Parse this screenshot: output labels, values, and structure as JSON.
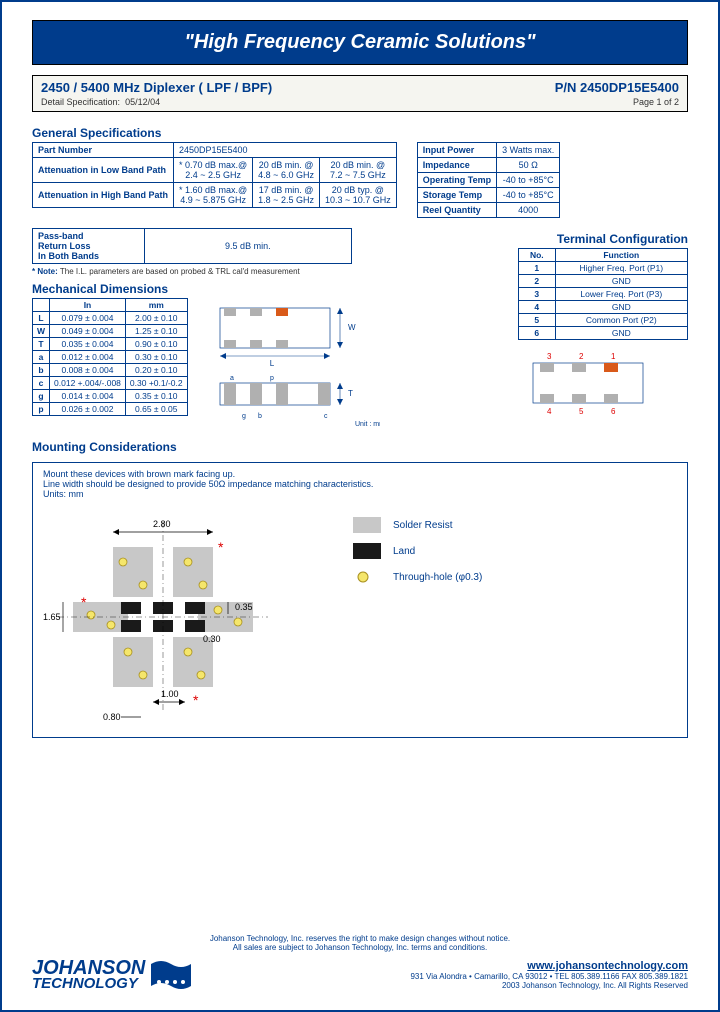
{
  "banner": "\"High Frequency Ceramic Solutions\"",
  "titlebar": {
    "main": "2450 / 5400 MHz Diplexer ( LPF / BPF)",
    "pn": "P/N 2450DP15E5400",
    "detail_label": "Detail Specification:",
    "date": "05/12/04",
    "page": "Page 1 of 2"
  },
  "sections": {
    "general": "General Specifications",
    "mech": "Mechanical Dimensions",
    "term": "Terminal Configuration",
    "mount": "Mounting Considerations"
  },
  "genspec": {
    "pn_label": "Part Number",
    "pn_val": "2450DP15E5400",
    "att_low_label": "Attenuation in Low Band Path",
    "att_low_1a": "* 0.70 dB max.@",
    "att_low_1b": "2.4 ~ 2.5 GHz",
    "att_low_2a": "20 dB min. @",
    "att_low_2b": "4.8 ~ 6.0 GHz",
    "att_low_3a": "20 dB min. @",
    "att_low_3b": "7.2 ~ 7.5 GHz",
    "att_high_label": "Attenuation in High Band Path",
    "att_high_1a": "* 1.60 dB max.@",
    "att_high_1b": "4.9 ~ 5.875 GHz",
    "att_high_2a": "17 dB min. @",
    "att_high_2b": "1.8 ~ 2.5 GHz",
    "att_high_3a": "20 dB typ. @",
    "att_high_3b": "10.3 ~ 10.7 GHz"
  },
  "envspec": {
    "power_l": "Input Power",
    "power_v": "3 Watts max.",
    "imp_l": "Impedance",
    "imp_v": "50 Ω",
    "opt_l": "Operating Temp",
    "opt_v": "-40 to +85°C",
    "stg_l": "Storage Temp",
    "stg_v": "-40 to +85°C",
    "reel_l": "Reel Quantity",
    "reel_v": "4000"
  },
  "passband": {
    "label1": "Pass-band",
    "label2": "Return Loss",
    "label3": "In Both Bands",
    "val": "9.5 dB min."
  },
  "note": "* Note: The I.L. parameters are based on probed & TRL cal'd measurement",
  "dims": {
    "h_in": "In",
    "h_mm": "mm",
    "rows": [
      {
        "k": "L",
        "in": "0.079 ± 0.004",
        "mm": "2.00 ± 0.10"
      },
      {
        "k": "W",
        "in": "0.049 ± 0.004",
        "mm": "1.25 ± 0.10"
      },
      {
        "k": "T",
        "in": "0.035 ± 0.004",
        "mm": "0.90 ± 0.10"
      },
      {
        "k": "a",
        "in": "0.012 ± 0.004",
        "mm": "0.30 ± 0.10"
      },
      {
        "k": "b",
        "in": "0.008 ± 0.004",
        "mm": "0.20 ± 0.10"
      },
      {
        "k": "c",
        "in": "0.012 +.004/-.008",
        "mm": "0.30 +0.1/-0.2"
      },
      {
        "k": "g",
        "in": "0.014 ± 0.004",
        "mm": "0.35 ± 0.10"
      },
      {
        "k": "p",
        "in": "0.026 ± 0.002",
        "mm": "0.65 ± 0.05"
      }
    ],
    "unit": "Unit : mm"
  },
  "terminals": {
    "h1": "No.",
    "h2": "Function",
    "rows": [
      {
        "n": "1",
        "f": "Higher Freq. Port (P1)"
      },
      {
        "n": "2",
        "f": "GND"
      },
      {
        "n": "3",
        "f": "Lower Freq. Port (P3)"
      },
      {
        "n": "4",
        "f": "GND"
      },
      {
        "n": "5",
        "f": "Common Port (P2)"
      },
      {
        "n": "6",
        "f": "GND"
      }
    ]
  },
  "mount": {
    "line1": "Mount these devices with brown mark facing up.",
    "line2": "Line width should be designed to provide 50Ω impedance matching characteristics.",
    "units": "Units: mm",
    "d1": "2.80",
    "d2": "1.65",
    "d3": "0.35",
    "d4": "0.30",
    "d5": "1.00",
    "d6": "0.80",
    "legend1": "Solder Resist",
    "legend2": "Land",
    "legend3": "Through-hole (φ0.3)"
  },
  "footer": {
    "l1": "Johanson Technology, Inc. reserves the right to make design changes without notice.",
    "l2": "All sales are subject to Johanson Technology, Inc. terms and conditions.",
    "url": "www.johansontechnology.com",
    "addr": "931 Via Alondra • Camarillo, CA 93012 • TEL 805.389.1166 FAX 805.389.1821",
    "copy": "2003 Johanson Technology, Inc. All Rights Reserved",
    "logo1": "JOHANSON",
    "logo2": "TECHNOLOGY"
  },
  "colors": {
    "brand": "#003c8c",
    "pad": "#b0b0b0",
    "mark": "#d95a1a",
    "land": "#1a1a1a",
    "hole": "#f5e66b"
  }
}
